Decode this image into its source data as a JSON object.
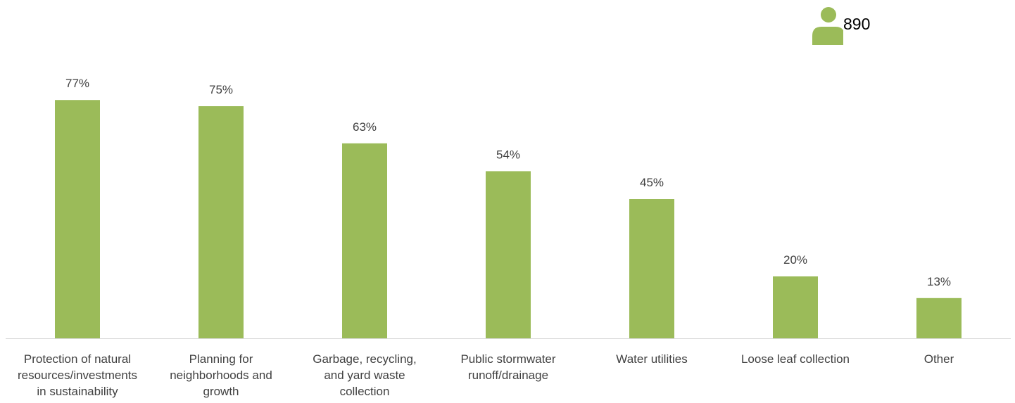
{
  "respondents": {
    "count": "890",
    "icon": "person-icon",
    "color": "#9BBB59"
  },
  "chart_data": {
    "type": "bar",
    "categories": [
      [
        "Protection of natural",
        "resources/investments",
        "in sustainability"
      ],
      [
        "Planning for",
        "neighborhoods and",
        "growth"
      ],
      [
        "Garbage, recycling,",
        "and yard waste",
        "collection"
      ],
      [
        "Public stormwater",
        "runoff/drainage"
      ],
      [
        "Water utilities"
      ],
      [
        "Loose leaf collection"
      ],
      [
        "Other"
      ]
    ],
    "values": [
      77,
      75,
      63,
      54,
      45,
      20,
      13
    ],
    "data_labels": [
      "77%",
      "75%",
      "63%",
      "54%",
      "45%",
      "20%",
      "13%"
    ],
    "title": "",
    "xlabel": "",
    "ylabel": "",
    "ylim": [
      0,
      100
    ],
    "grid": false,
    "bar_color": "#9BBB59",
    "axis_color": "#D9D9D9",
    "label_color": "#404040"
  }
}
